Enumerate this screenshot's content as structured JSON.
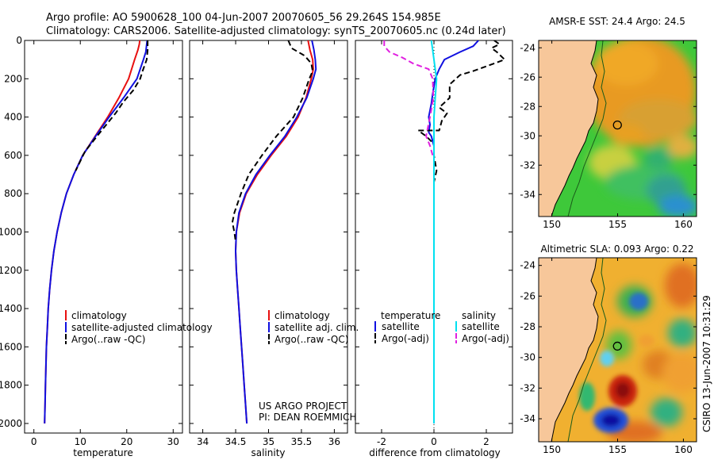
{
  "header": {
    "line1": "Argo profile: AO 5900628_100 04-Jun-2007 20070605_56 29.264S 154.985E",
    "line2": "Climatology: CARS2006. Satellite-adjusted climatology: synTS_20070605.nc (0.24d later)"
  },
  "side_label": "CSIRO 13-Jun-2007 10:31:29",
  "credit": {
    "line1": "US ARGO PROJECT",
    "line2": "PI: DEAN ROEMMICH"
  },
  "colors": {
    "climatology": "#e81010",
    "satellite": "#1010e0",
    "argo": "#000000",
    "salinity_satellite": "#00e0f0",
    "salinity_argo": "#e020e0",
    "land": "#f7c79a",
    "marker": "#000000"
  },
  "chart_data": [
    {
      "id": "temperature",
      "type": "line",
      "xlabel": "temperature",
      "ylabel": "",
      "xlim": [
        -2,
        32
      ],
      "ylim": [
        2050,
        0
      ],
      "xticks": [
        0,
        10,
        20,
        30
      ],
      "yticks": [
        0,
        200,
        400,
        600,
        800,
        1000,
        1200,
        1400,
        1600,
        1800,
        2000
      ],
      "legend": [
        "climatology",
        "satellite-adjusted climatology",
        "Argo(..raw -QC)"
      ],
      "series": [
        {
          "name": "climatology",
          "color": "#e81010",
          "dash": false,
          "points": [
            [
              22.8,
              0
            ],
            [
              22.7,
              20
            ],
            [
              22.4,
              50
            ],
            [
              21.7,
              100
            ],
            [
              20.4,
              200
            ],
            [
              18.3,
              300
            ],
            [
              15.9,
              400
            ],
            [
              13.2,
              500
            ],
            [
              10.5,
              600
            ],
            [
              8.6,
              700
            ],
            [
              7.0,
              800
            ],
            [
              5.9,
              900
            ],
            [
              5.0,
              1000
            ],
            [
              4.3,
              1100
            ],
            [
              3.8,
              1200
            ],
            [
              3.4,
              1300
            ],
            [
              3.1,
              1400
            ],
            [
              2.9,
              1500
            ],
            [
              2.7,
              1600
            ],
            [
              2.6,
              1700
            ],
            [
              2.5,
              1800
            ],
            [
              2.4,
              1900
            ],
            [
              2.3,
              2000
            ]
          ]
        },
        {
          "name": "satellite-adjusted climatology",
          "color": "#1010e0",
          "dash": false,
          "points": [
            [
              24.4,
              0
            ],
            [
              24.3,
              20
            ],
            [
              24.1,
              60
            ],
            [
              23.6,
              100
            ],
            [
              22.2,
              200
            ],
            [
              19.3,
              300
            ],
            [
              16.2,
              400
            ],
            [
              13.3,
              500
            ],
            [
              10.5,
              600
            ],
            [
              8.6,
              700
            ],
            [
              7.0,
              800
            ],
            [
              5.9,
              900
            ],
            [
              5.0,
              1000
            ],
            [
              4.3,
              1100
            ],
            [
              3.8,
              1200
            ],
            [
              3.4,
              1300
            ],
            [
              3.1,
              1400
            ],
            [
              2.9,
              1500
            ],
            [
              2.7,
              1600
            ],
            [
              2.6,
              1700
            ],
            [
              2.5,
              1800
            ],
            [
              2.4,
              1900
            ],
            [
              2.3,
              2000
            ]
          ]
        },
        {
          "name": "Argo(..raw -QC)",
          "color": "#000000",
          "dash": true,
          "points": [
            [
              24.5,
              0
            ],
            [
              24.5,
              50
            ],
            [
              24.3,
              100
            ],
            [
              23.4,
              160
            ],
            [
              22.9,
              200
            ],
            [
              21.4,
              260
            ],
            [
              19.3,
              320
            ],
            [
              17.6,
              380
            ],
            [
              15.6,
              440
            ],
            [
              13.6,
              500
            ],
            [
              11.0,
              580
            ],
            [
              9.0,
              680
            ]
          ]
        }
      ]
    },
    {
      "id": "salinity",
      "type": "line",
      "xlabel": "salinity",
      "ylabel": "",
      "xlim": [
        33.8,
        36.2
      ],
      "ylim": [
        2050,
        0
      ],
      "xticks": [
        34,
        34.5,
        35,
        35.5,
        36
      ],
      "xtick_labels": [
        "34",
        "34.5",
        "35",
        "35.5",
        "36"
      ],
      "yticks": [],
      "legend": [
        "climatology",
        "satellite adj. clim.",
        "Argo(..raw -QC)"
      ],
      "series": [
        {
          "name": "climatology",
          "color": "#e81010",
          "dash": false,
          "points": [
            [
              35.6,
              0
            ],
            [
              35.63,
              50
            ],
            [
              35.67,
              100
            ],
            [
              35.68,
              150
            ],
            [
              35.65,
              200
            ],
            [
              35.57,
              300
            ],
            [
              35.45,
              400
            ],
            [
              35.27,
              500
            ],
            [
              35.04,
              600
            ],
            [
              34.83,
              700
            ],
            [
              34.66,
              800
            ],
            [
              34.56,
              900
            ],
            [
              34.51,
              1000
            ],
            [
              34.5,
              1100
            ],
            [
              34.51,
              1200
            ],
            [
              34.53,
              1300
            ],
            [
              34.55,
              1400
            ],
            [
              34.57,
              1500
            ],
            [
              34.59,
              1600
            ],
            [
              34.61,
              1700
            ],
            [
              34.63,
              1800
            ],
            [
              34.65,
              1900
            ],
            [
              34.67,
              2000
            ]
          ]
        },
        {
          "name": "satellite adj. clim.",
          "color": "#1010e0",
          "dash": false,
          "points": [
            [
              35.66,
              0
            ],
            [
              35.69,
              50
            ],
            [
              35.71,
              100
            ],
            [
              35.72,
              150
            ],
            [
              35.68,
              200
            ],
            [
              35.58,
              300
            ],
            [
              35.43,
              400
            ],
            [
              35.25,
              500
            ],
            [
              35.02,
              600
            ],
            [
              34.81,
              700
            ],
            [
              34.65,
              800
            ],
            [
              34.55,
              900
            ],
            [
              34.51,
              1000
            ],
            [
              34.5,
              1100
            ],
            [
              34.51,
              1200
            ],
            [
              34.53,
              1300
            ],
            [
              34.55,
              1400
            ],
            [
              34.57,
              1500
            ],
            [
              34.59,
              1600
            ],
            [
              34.61,
              1700
            ],
            [
              34.63,
              1800
            ],
            [
              34.65,
              1900
            ],
            [
              34.67,
              2000
            ]
          ]
        },
        {
          "name": "Argo(..raw -QC)",
          "color": "#000000",
          "dash": true,
          "points": [
            [
              35.3,
              0
            ],
            [
              35.35,
              40
            ],
            [
              35.55,
              80
            ],
            [
              35.65,
              120
            ],
            [
              35.67,
              160
            ],
            [
              35.62,
              200
            ],
            [
              35.52,
              300
            ],
            [
              35.38,
              400
            ],
            [
              35.12,
              500
            ],
            [
              34.9,
              600
            ],
            [
              34.7,
              700
            ],
            [
              34.58,
              800
            ],
            [
              34.48,
              900
            ],
            [
              34.45,
              950
            ],
            [
              34.48,
              1000
            ],
            [
              34.5,
              1050
            ]
          ]
        }
      ]
    },
    {
      "id": "difference",
      "type": "line",
      "xlabel": "difference from climatology",
      "ylabel": "",
      "xlim": [
        -3.0,
        3.0
      ],
      "ylim": [
        2050,
        0
      ],
      "xticks": [
        -2,
        0,
        2
      ],
      "yticks": [],
      "legend_left_title": "temperature",
      "legend_right_title": "salinity",
      "legend_left": [
        "satellite",
        "Argo(-adj)"
      ],
      "legend_right": [
        "satellite",
        "Argo(-adj)"
      ],
      "series": [
        {
          "name": "temperature satellite",
          "color": "#1010e0",
          "dash": false,
          "points": [
            [
              1.7,
              0
            ],
            [
              1.5,
              30
            ],
            [
              1.0,
              60
            ],
            [
              0.4,
              100
            ],
            [
              0.2,
              150
            ],
            [
              0.05,
              200
            ],
            [
              -0.05,
              280
            ],
            [
              -0.1,
              330
            ],
            [
              -0.2,
              400
            ],
            [
              -0.15,
              440
            ],
            [
              -0.2,
              480
            ],
            [
              -0.1,
              500
            ],
            [
              0,
              550
            ],
            [
              0,
              600
            ],
            [
              0,
              700
            ],
            [
              0,
              800
            ],
            [
              0,
              900
            ],
            [
              0,
              1000
            ],
            [
              0,
              1200
            ],
            [
              0,
              1400
            ],
            [
              0,
              1600
            ],
            [
              0,
              1800
            ],
            [
              0,
              2000
            ]
          ]
        },
        {
          "name": "temperature Argo(-adj)",
          "color": "#000000",
          "dash": true,
          "points": [
            [
              2.3,
              0
            ],
            [
              2.5,
              20
            ],
            [
              2.2,
              40
            ],
            [
              2.4,
              60
            ],
            [
              2.7,
              100
            ],
            [
              2.1,
              130
            ],
            [
              1.5,
              160
            ],
            [
              1.0,
              180
            ],
            [
              0.6,
              230
            ],
            [
              0.6,
              300
            ],
            [
              0.2,
              350
            ],
            [
              0.5,
              380
            ],
            [
              0.3,
              420
            ],
            [
              0.2,
              470
            ],
            [
              -0.6,
              470
            ],
            [
              -0.3,
              500
            ],
            [
              0.0,
              540
            ],
            [
              0.0,
              600
            ],
            [
              0.1,
              680
            ],
            [
              0,
              740
            ],
            [
              0,
              800
            ],
            [
              0,
              870
            ]
          ]
        },
        {
          "name": "salinity satellite",
          "color": "#00e0f0",
          "dash": false,
          "points": [
            [
              -0.1,
              0
            ],
            [
              -0.05,
              50
            ],
            [
              0.0,
              100
            ],
            [
              0.05,
              150
            ],
            [
              0.1,
              200
            ],
            [
              0.05,
              300
            ],
            [
              0.0,
              400
            ],
            [
              0.0,
              500
            ],
            [
              0.0,
              600
            ],
            [
              0.0,
              800
            ],
            [
              0.0,
              1000
            ],
            [
              0.0,
              1200
            ],
            [
              0.0,
              1400
            ],
            [
              0.0,
              1600
            ],
            [
              0.0,
              1800
            ],
            [
              0.0,
              2000
            ]
          ]
        },
        {
          "name": "salinity Argo(-adj)",
          "color": "#e020e0",
          "dash": true,
          "points": [
            [
              -1.9,
              0
            ],
            [
              -1.9,
              30
            ],
            [
              -1.7,
              60
            ],
            [
              -1.2,
              90
            ],
            [
              -0.8,
              120
            ],
            [
              -0.2,
              150
            ],
            [
              -0.05,
              200
            ],
            [
              -0.02,
              300
            ],
            [
              -0.15,
              400
            ],
            [
              -0.3,
              500
            ],
            [
              -0.15,
              550
            ],
            [
              -0.05,
              600
            ]
          ]
        }
      ]
    },
    {
      "id": "sst_map",
      "type": "heatmap",
      "title": "AMSR-E SST: 24.4 Argo: 24.5",
      "xlim": [
        149,
        161
      ],
      "ylim": [
        -35.5,
        -23.5
      ],
      "xticks": [
        150,
        155,
        160
      ],
      "yticks": [
        -24,
        -26,
        -28,
        -30,
        -32,
        -34
      ],
      "profile_location": {
        "lon": 154.985,
        "lat": -29.264
      }
    },
    {
      "id": "sla_map",
      "type": "heatmap",
      "title": "Altimetric SLA: 0.093 Argo: 0.22",
      "xlim": [
        149,
        161
      ],
      "ylim": [
        -35.5,
        -23.5
      ],
      "xticks": [
        150,
        155,
        160
      ],
      "yticks": [
        -24,
        -26,
        -28,
        -30,
        -32,
        -34
      ],
      "profile_location": {
        "lon": 154.985,
        "lat": -29.264
      }
    }
  ]
}
